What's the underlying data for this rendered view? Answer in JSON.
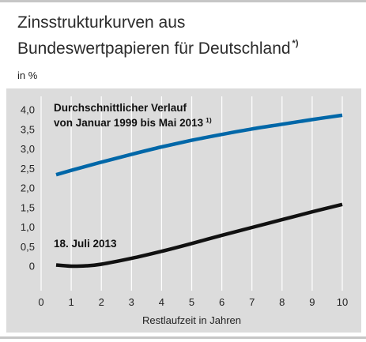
{
  "title_line1": "Zinsstrukturkurven aus",
  "title_line2": "Bundeswertpapieren für Deutschland",
  "title_footnote": "*)",
  "unit_label": "in %",
  "colors": {
    "panel": "#dcdcdc",
    "series_average": "#0067a8",
    "series_july": "#111111"
  },
  "chart_data": {
    "type": "line",
    "title": "Zinsstrukturkurven aus Bundeswertpapieren für Deutschland",
    "xlabel": "Restlaufzeit in Jahren",
    "ylabel": "in %",
    "xlim": [
      0,
      10
    ],
    "ylim": [
      0,
      4.0
    ],
    "x_ticks": [
      "0",
      "1",
      "2",
      "3",
      "4",
      "5",
      "6",
      "7",
      "8",
      "9",
      "10"
    ],
    "y_ticks": [
      "0",
      "0,5",
      "1,0",
      "1,5",
      "2,0",
      "2,5",
      "3,0",
      "3,5",
      "4,0"
    ],
    "grid": "vertical",
    "series": [
      {
        "name": "Durchschnittlicher Verlauf von Januar 1999 bis Mai 2013",
        "label_lines": [
          "Durchschnittlicher Verlauf",
          "von Januar 1999 bis Mai 2013"
        ],
        "label_footnote": "1)",
        "color": "#0067a8",
        "x": [
          0.5,
          1,
          2,
          3,
          4,
          5,
          6,
          7,
          8,
          9,
          10
        ],
        "y": [
          2.34,
          2.45,
          2.66,
          2.86,
          3.05,
          3.22,
          3.37,
          3.51,
          3.63,
          3.75,
          3.86
        ]
      },
      {
        "name": "18. Juli 2013",
        "label_lines": [
          "18. Juli 2013"
        ],
        "label_footnote": "",
        "color": "#111111",
        "x": [
          0.5,
          1,
          1.5,
          2,
          3,
          4,
          5,
          6,
          7,
          8,
          9,
          10
        ],
        "y": [
          0.03,
          0.0,
          0.01,
          0.05,
          0.2,
          0.38,
          0.58,
          0.79,
          0.99,
          1.19,
          1.39,
          1.58
        ]
      }
    ]
  }
}
